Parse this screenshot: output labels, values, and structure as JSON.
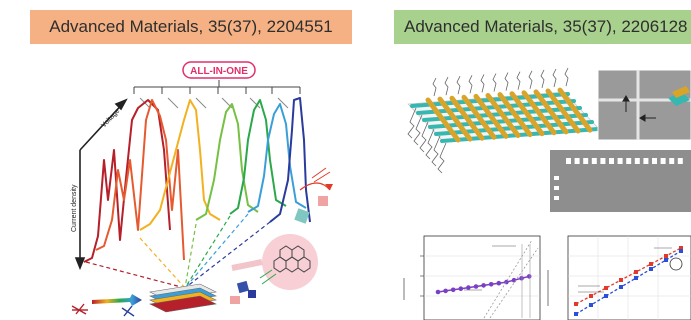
{
  "left_figure": {
    "banner": {
      "text": "Advanced Materials, 35(37), 2204551",
      "color": "#f5b183"
    },
    "badge": {
      "text": "ALL-IN-ONE",
      "color": "#e0306a"
    },
    "y_axis_upper_label": "Voltage",
    "y_axis_lower_label": "Current density",
    "curve_colors": [
      "#b5202a",
      "#e65a30",
      "#f2b120",
      "#76c043",
      "#2aa84a",
      "#3a9fd8",
      "#2a3b9c"
    ]
  },
  "right_figure": {
    "banner": {
      "text": "Advanced Materials, 35(37), 2206128",
      "color": "#a9d18e"
    },
    "plot_colors": {
      "purple_series": "#7a3fc4",
      "red_series": "#e23a2a",
      "blue_series": "#2a4fd8"
    }
  }
}
